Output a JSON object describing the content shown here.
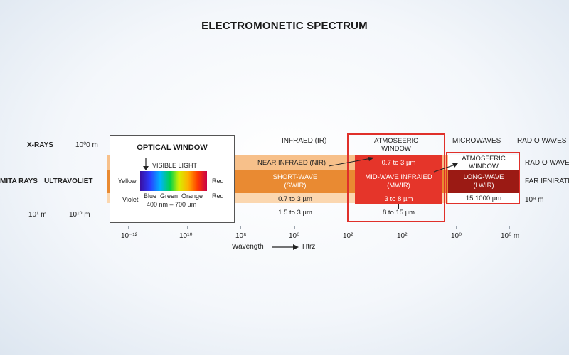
{
  "title": "ELECTROMONETIC SPECTRUM",
  "left_labels": {
    "x_rays": "X-RAYS",
    "gamma": "MITA RAYS",
    "ultraviolet": "ULTRAVOLIET",
    "top_scale": "10⁰0 m",
    "bottom_left": "10¹ m",
    "bottom_mid": "10¹⁰ m"
  },
  "optical_window": {
    "title": "OPTICAL WINDOW",
    "visible_light": "VISIBLE LIGHT",
    "yellow": "Yellow",
    "red": "Red",
    "violet": "Violet",
    "red2": "Red",
    "colors": "Blue  Green  Orange",
    "range": "400 nm – 700 µm"
  },
  "infrared": {
    "header": "INFRAED (IR)",
    "nir": "NEAR INFRAED (NIR)",
    "swir_line1": "SHORT-WAVE",
    "swir_line2": "(SWIR)",
    "swir_range": "0.7 to 3 µm",
    "swir_range2": "1.5 to 3 µm"
  },
  "atmospheric_window_1": {
    "line1": "ATMOSEERIC",
    "line2": "WINDOW",
    "range": "0.7 to 3 µm",
    "mwir_line1": "MID-WAVE INFRAIED",
    "mwir_line2": "(MWIR)",
    "mwir_range": "3 to 8 µm",
    "bottom_range": "8 to 15 µm"
  },
  "right_section": {
    "microwaves": "MICROWAVES",
    "radio_waves": "RADIO WAVES",
    "atm2_line1": "ATMOSFERIC",
    "atm2_line2": "WINDOW",
    "radio_wave2": "RADIO WAVE",
    "lwir_line1": "LONG-WAVE",
    "lwir_line2": "(LWIR)",
    "far_ir": "FAR IFNIRATES",
    "lwir_range": "15 1000 µm",
    "right_scale": "10⁹ m"
  },
  "axis": {
    "ticks": [
      "10⁻¹²",
      "10¹⁰",
      "10⁸",
      "10⁰",
      "10²",
      "10²",
      "10⁰",
      "10⁰ m"
    ],
    "wavelength": "Wavength",
    "frequency": "Htrz"
  },
  "colors": {
    "band_light": "#f7c08a",
    "band_mid": "#e98a32",
    "mwir_red": "#e5352a",
    "lwir_dark": "#9b1a14",
    "outline_red": "#e0302a"
  }
}
